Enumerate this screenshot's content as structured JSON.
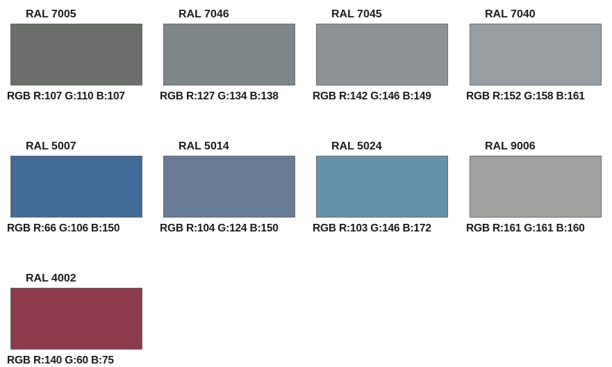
{
  "swatches": [
    {
      "code": "RAL 7005",
      "rgb_label": "RGB R:107 G:110 B:107",
      "color": "#6B6E6B"
    },
    {
      "code": "RAL 7046",
      "rgb_label": "RGB R:127 G:134 B:138",
      "color": "#7F868A"
    },
    {
      "code": "RAL 7045",
      "rgb_label": "RGB R:142 G:146 B:149",
      "color": "#8E9295"
    },
    {
      "code": "RAL 7040",
      "rgb_label": "RGB R:152 G:158 B:161",
      "color": "#989EA1"
    },
    {
      "code": "RAL 5007",
      "rgb_label": "RGB R:66 G:106 B:150",
      "color": "#426A96"
    },
    {
      "code": "RAL 5014",
      "rgb_label": "RGB R:104 G:124 B:150",
      "color": "#687C96"
    },
    {
      "code": "RAL 5024",
      "rgb_label": "RGB R:103 G:146 B:172",
      "color": "#6792AC"
    },
    {
      "code": "RAL 9006",
      "rgb_label": "RGB R:161 G:161 B:160",
      "color": "#A1A1A0"
    },
    {
      "code": "RAL 4002",
      "rgb_label": "RGB R:140 G:60 B:75",
      "color": "#8C3C4B"
    }
  ]
}
